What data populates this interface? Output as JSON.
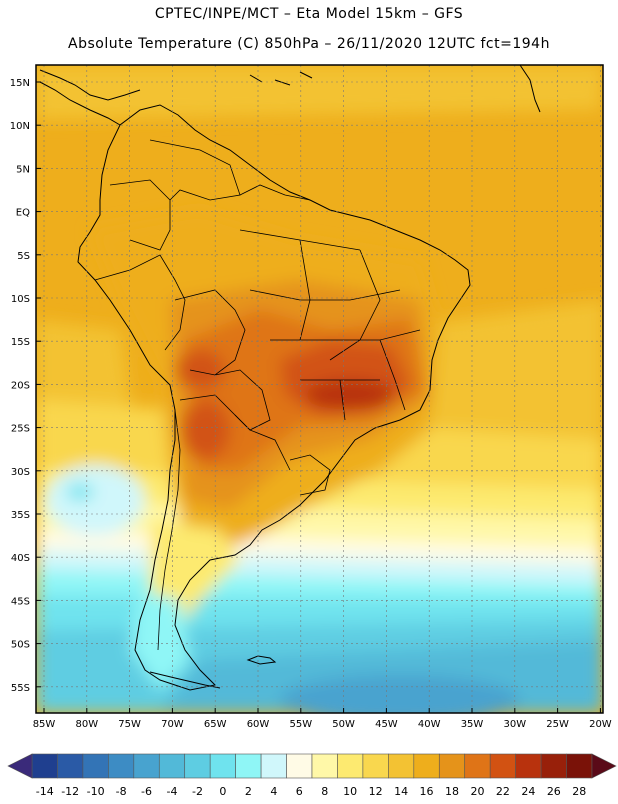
{
  "header": {
    "line1": "CPTEC/INPE/MCT –  Eta Model 15km – GFS",
    "line2": "Absolute Temperature (C) 850hPa – 26/11/2020 12UTC fct=194h"
  },
  "axes": {
    "lat_labels": [
      "15N",
      "10N",
      "5N",
      "EQ",
      "5S",
      "10S",
      "15S",
      "20S",
      "25S",
      "30S",
      "35S",
      "40S",
      "45S",
      "50S",
      "55S"
    ],
    "lon_labels": [
      "85W",
      "80W",
      "75W",
      "70W",
      "65W",
      "60W",
      "55W",
      "50W",
      "45W",
      "40W",
      "35W",
      "30W",
      "25W",
      "20W"
    ]
  },
  "colorbar": {
    "labels": [
      "-14",
      "-12",
      "-10",
      "-8",
      "-6",
      "-4",
      "-2",
      "0",
      "2",
      "4",
      "6",
      "8",
      "10",
      "12",
      "14",
      "16",
      "18",
      "20",
      "22",
      "24",
      "26",
      "28"
    ],
    "colors": [
      "#1f3f8f",
      "#2a5aa6",
      "#3374b6",
      "#3d8cc4",
      "#48a3cf",
      "#52b9d8",
      "#5ecde2",
      "#6fe3ee",
      "#8ff6f6",
      "#d0f7fb",
      "#fffbe6",
      "#fff8a8",
      "#fdea70",
      "#f9d74e",
      "#f3c233",
      "#eeae1c",
      "#e5931a",
      "#df7417",
      "#d25212",
      "#b8320d",
      "#98200a",
      "#7a1208"
    ]
  },
  "map_data": {
    "field": "Absolute Temperature (C) 850hPa",
    "hottest_region": "Central/southeast Brazil and Paraguay, about 22-24 C",
    "coldest_region": "Southern ocean south of 45S, about -4 to 0 C"
  }
}
